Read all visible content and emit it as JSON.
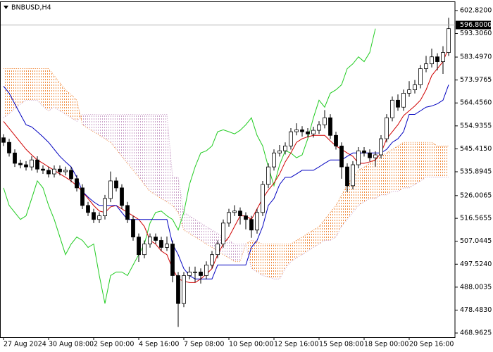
{
  "chart_data": {
    "type": "candlestick",
    "title": "BNBUSD,H4",
    "categories": [
      "27 Aug 2024",
      null,
      null,
      null,
      null,
      null,
      null,
      null,
      "30 Aug 08:00",
      null,
      null,
      null,
      null,
      null,
      null,
      null,
      "2 Sep 00:00",
      null,
      null,
      null,
      null,
      null,
      null,
      null,
      "4 Sep 16:00",
      null,
      null,
      null,
      null,
      null,
      null,
      null,
      "7 Sep 08:00",
      null,
      null,
      null,
      null,
      null,
      null,
      null,
      "10 Sep 00:00",
      null,
      null,
      null,
      null,
      null,
      null,
      null,
      "12 Sep 16:00",
      null,
      null,
      null,
      null,
      null,
      null,
      null,
      "15 Sep 08:00",
      null,
      null,
      null,
      null,
      null,
      null,
      null,
      "18 Sep 00:00",
      null,
      null,
      null,
      null,
      null,
      null,
      null,
      "20 Sep 16:00",
      null,
      null,
      null,
      null,
      null,
      null,
      null
    ],
    "candles": {
      "up_fill": "#ffffff",
      "down_fill": "#000000",
      "edge_color": "#000000",
      "open": [
        550.0,
        548.1,
        543.7,
        539.4,
        538.8,
        537.9,
        540.8,
        537.0,
        536.5,
        535.0,
        537.0,
        535.9,
        536.5,
        533.0,
        529.2,
        521.9,
        519.0,
        516.1,
        517.6,
        524.8,
        532.1,
        529.2,
        521.9,
        516.1,
        508.8,
        501.5,
        505.9,
        508.8,
        507.4,
        504.5,
        505.9,
        492.8,
        481.2,
        492.8,
        494.3,
        494.3,
        492.8,
        497.2,
        501.5,
        505.9,
        514.6,
        519.0,
        519.6,
        517.6,
        516.1,
        511.7,
        519.0,
        530.6,
        537.9,
        543.7,
        544.6,
        546.6,
        552.5,
        553.3,
        552.5,
        551.6,
        553.1,
        555.4,
        558.3,
        551.0,
        546.6,
        537.9,
        530.1,
        538.8,
        544.6,
        543.7,
        541.7,
        542.9,
        549.6,
        558.3,
        565.6,
        562.7,
        568.5,
        569.9,
        572.0,
        578.7,
        580.7,
        583.6,
        581.6,
        585.4
      ],
      "high": [
        551.5,
        549.6,
        545.2,
        540.9,
        540.3,
        542.3,
        542.3,
        538.5,
        538.0,
        538.5,
        538.5,
        538.0,
        538.0,
        534.5,
        530.7,
        523.4,
        520.5,
        519.1,
        526.3,
        536.0,
        533.6,
        530.7,
        523.4,
        517.6,
        510.3,
        507.4,
        510.3,
        510.3,
        508.9,
        509.0,
        507.4,
        494.3,
        494.3,
        496.5,
        496.5,
        495.8,
        498.7,
        503.0,
        507.4,
        516.1,
        520.5,
        522.0,
        521.1,
        519.1,
        517.6,
        520.5,
        532.1,
        539.4,
        545.2,
        547.0,
        548.1,
        554.0,
        556.0,
        554.8,
        554.0,
        554.6,
        556.9,
        561.5,
        559.8,
        552.5,
        548.1,
        539.4,
        540.3,
        546.1,
        546.1,
        545.2,
        544.4,
        551.1,
        559.8,
        567.1,
        568.0,
        570.0,
        573.5,
        574.0,
        580.2,
        584.0,
        587.0,
        585.1,
        588.0,
        599.8
      ],
      "low": [
        546.6,
        542.2,
        537.9,
        537.3,
        536.4,
        536.4,
        535.5,
        535.0,
        533.5,
        533.5,
        534.4,
        534.4,
        531.5,
        527.7,
        520.4,
        517.5,
        514.6,
        514.6,
        516.1,
        523.3,
        527.7,
        520.4,
        514.6,
        507.3,
        498.5,
        500.0,
        504.4,
        505.9,
        503.0,
        503.0,
        490.0,
        471.5,
        479.7,
        491.3,
        490.0,
        489.5,
        491.3,
        495.7,
        500.0,
        504.4,
        513.1,
        517.5,
        514.0,
        512.0,
        508.5,
        510.2,
        517.5,
        529.1,
        536.4,
        542.2,
        543.1,
        545.1,
        551.0,
        550.5,
        550.1,
        550.1,
        551.6,
        553.9,
        549.5,
        545.1,
        533.0,
        527.5,
        528.6,
        537.3,
        542.2,
        540.2,
        538.0,
        541.4,
        548.1,
        556.8,
        561.2,
        561.2,
        567.0,
        568.4,
        570.5,
        577.2,
        579.2,
        578.0,
        576.5,
        584.0
      ],
      "close": [
        548.1,
        543.7,
        539.4,
        538.8,
        537.9,
        540.8,
        537.0,
        536.5,
        535.0,
        537.0,
        535.9,
        536.5,
        533.0,
        529.2,
        521.9,
        519.0,
        516.1,
        517.6,
        524.8,
        532.1,
        529.2,
        521.9,
        516.1,
        508.8,
        501.5,
        505.9,
        508.8,
        507.4,
        504.5,
        505.9,
        492.8,
        481.2,
        492.8,
        494.3,
        494.3,
        492.8,
        497.2,
        501.5,
        505.9,
        514.6,
        519.0,
        519.6,
        517.6,
        516.1,
        511.7,
        519.0,
        530.6,
        537.9,
        543.7,
        544.6,
        546.6,
        552.5,
        553.3,
        552.5,
        551.6,
        553.1,
        555.4,
        558.3,
        551.0,
        546.6,
        537.9,
        530.1,
        538.8,
        544.6,
        543.7,
        541.7,
        542.9,
        549.6,
        558.3,
        565.6,
        562.7,
        568.5,
        569.9,
        572.0,
        578.7,
        580.7,
        583.6,
        581.6,
        585.4,
        595.3
      ]
    },
    "series": [
      {
        "color": "#22cc22",
        "values": [
          529.2,
          521.9,
          519.0,
          516.1,
          517.6,
          524.8,
          532.1,
          529.2,
          521.9,
          516.1,
          508.8,
          501.5,
          505.9,
          508.8,
          507.4,
          504.5,
          505.9,
          492.8,
          481.2,
          492.8,
          494.3,
          494.3,
          492.8,
          497.2,
          501.5,
          505.9,
          514.6,
          519.0,
          519.6,
          517.6,
          516.1,
          511.7,
          519.0,
          530.6,
          537.9,
          543.7,
          544.6,
          546.6,
          552.5,
          553.3,
          552.5,
          551.6,
          553.1,
          555.4,
          558.3,
          551.0,
          546.6,
          537.9,
          530.1,
          538.8,
          544.6,
          543.7,
          541.7,
          542.9,
          549.6,
          558.3,
          565.6,
          562.7,
          568.5,
          569.9,
          572.0,
          578.7,
          580.7,
          583.6,
          581.6,
          585.4,
          595.3,
          null,
          null,
          null,
          null,
          null,
          null,
          null,
          null,
          null,
          null,
          null,
          null,
          null
        ]
      },
      {
        "color": "#d00000",
        "values": [
          556.8,
          553.9,
          551.0,
          548.1,
          545.2,
          542.9,
          540.8,
          539.4,
          537.9,
          536.5,
          535.0,
          533.6,
          532.1,
          530.1,
          527.7,
          524.8,
          521.9,
          519.6,
          519.0,
          521.3,
          521.9,
          520.5,
          519.0,
          517.6,
          516.1,
          513.2,
          507.4,
          505.9,
          503.0,
          501.5,
          495.7,
          491.4,
          490.5,
          489.9,
          489.9,
          491.4,
          493.4,
          495.7,
          501.5,
          505.9,
          508.8,
          513.2,
          517.6,
          517.6,
          516.1,
          520.5,
          524.8,
          528.3,
          531.2,
          535.0,
          540.0,
          543.7,
          548.1,
          549.6,
          550.4,
          551.0,
          551.0,
          551.0,
          548.7,
          546.6,
          545.2,
          543.7,
          542.3,
          539.4,
          539.4,
          540.0,
          540.8,
          543.7,
          549.6,
          552.5,
          555.4,
          559.2,
          561.2,
          563.2,
          565.6,
          569.9,
          575.8,
          578.7,
          581.6,
          587.4
        ]
      },
      {
        "color": "#0000c0",
        "values": [
          571.4,
          568.5,
          564.1,
          559.7,
          555.4,
          554.5,
          552.5,
          550.4,
          548.1,
          545.2,
          542.3,
          540.0,
          537.9,
          533.6,
          527.7,
          525.4,
          523.4,
          521.9,
          521.9,
          521.9,
          521.9,
          519.0,
          516.1,
          516.1,
          516.1,
          516.1,
          516.1,
          516.1,
          516.1,
          516.1,
          505.9,
          501.5,
          495.7,
          492.8,
          491.4,
          491.4,
          491.4,
          491.4,
          497.2,
          497.2,
          497.2,
          497.2,
          497.2,
          497.2,
          504.5,
          507.4,
          513.2,
          521.9,
          524.8,
          530.6,
          533.6,
          533.6,
          535.0,
          536.5,
          536.5,
          536.5,
          537.9,
          539.4,
          540.8,
          540.8,
          540.8,
          542.3,
          543.7,
          543.7,
          543.7,
          543.7,
          543.7,
          543.7,
          545.2,
          548.1,
          549.6,
          552.5,
          559.7,
          559.7,
          561.2,
          562.7,
          563.2,
          564.1,
          565.6,
          572.0
        ]
      }
    ],
    "cloud": {
      "bull_color": "#f08a3c",
      "bear_color": "#c9a0c8",
      "span_a": [
        578.7,
        578.7,
        578.7,
        578.7,
        578.7,
        578.7,
        578.7,
        578.7,
        578.7,
        575.8,
        572.8,
        569.9,
        567.9,
        565.6,
        555.4,
        553.9,
        552.5,
        551.0,
        549.6,
        548.1,
        545.2,
        542.3,
        539.4,
        536.5,
        533.6,
        530.6,
        527.7,
        526.3,
        524.8,
        523.4,
        521.9,
        519.0,
        511.7,
        510.3,
        508.8,
        507.4,
        505.9,
        504.5,
        503.0,
        501.5,
        500.1,
        498.6,
        498.6,
        505.9,
        507.4,
        506.8,
        505.9,
        505.9,
        505.9,
        505.9,
        505.9,
        505.9,
        507.4,
        508.8,
        510.3,
        511.7,
        513.2,
        516.1,
        519.0,
        521.9,
        526.3,
        530.6,
        533.6,
        536.5,
        537.9,
        539.4,
        540.8,
        542.3,
        543.7,
        545.2,
        546.6,
        548.1,
        548.1,
        548.1,
        548.1,
        548.1,
        548.1,
        546.6,
        546.6,
        546.6
      ],
      "span_b": [
        558.3,
        560.0,
        562.0,
        564.0,
        565.6,
        565.6,
        565.6,
        563.0,
        561.2,
        562.7,
        561.2,
        559.7,
        558.3,
        556.8,
        559.7,
        559.7,
        559.7,
        559.7,
        559.7,
        559.7,
        559.7,
        559.7,
        559.7,
        559.7,
        559.7,
        559.7,
        559.7,
        559.7,
        559.7,
        559.7,
        533.6,
        533.6,
        519.0,
        517.6,
        516.1,
        514.6,
        513.2,
        511.7,
        510.3,
        508.8,
        507.4,
        505.9,
        505.9,
        505.9,
        495.7,
        494.3,
        492.8,
        492.2,
        491.4,
        491.4,
        495.7,
        498.6,
        500.1,
        501.5,
        503.0,
        504.5,
        505.9,
        507.4,
        507.4,
        508.8,
        513.2,
        516.1,
        519.0,
        521.9,
        523.4,
        524.8,
        524.8,
        526.3,
        526.3,
        527.7,
        527.7,
        529.2,
        529.2,
        530.6,
        532.1,
        533.6,
        533.6,
        533.6,
        533.6,
        533.6
      ]
    },
    "current_price": {
      "value": 596.8,
      "label": "596.8000"
    },
    "ylim": [
      467.22,
      606.31
    ],
    "yticks": [
      {
        "value": 602.82,
        "label": "602.8200"
      },
      {
        "value": 593.306,
        "label": "593.3060"
      },
      {
        "value": 583.497,
        "label": "583.4970"
      },
      {
        "value": 573.9765,
        "label": "573.9765"
      },
      {
        "value": 564.456,
        "label": "564.4560"
      },
      {
        "value": 554.9355,
        "label": "554.9355"
      },
      {
        "value": 545.415,
        "label": "545.4150"
      },
      {
        "value": 535.8945,
        "label": "535.8945"
      },
      {
        "value": 526.0065,
        "label": "526.0065"
      },
      {
        "value": 516.5655,
        "label": "516.5655"
      },
      {
        "value": 507.0445,
        "label": "507.0445"
      },
      {
        "value": 497.524,
        "label": "497.5240"
      },
      {
        "value": 488.0035,
        "label": "488.0035"
      },
      {
        "value": 478.483,
        "label": "478.4830"
      },
      {
        "value": 468.9625,
        "label": "468.9625"
      }
    ]
  }
}
